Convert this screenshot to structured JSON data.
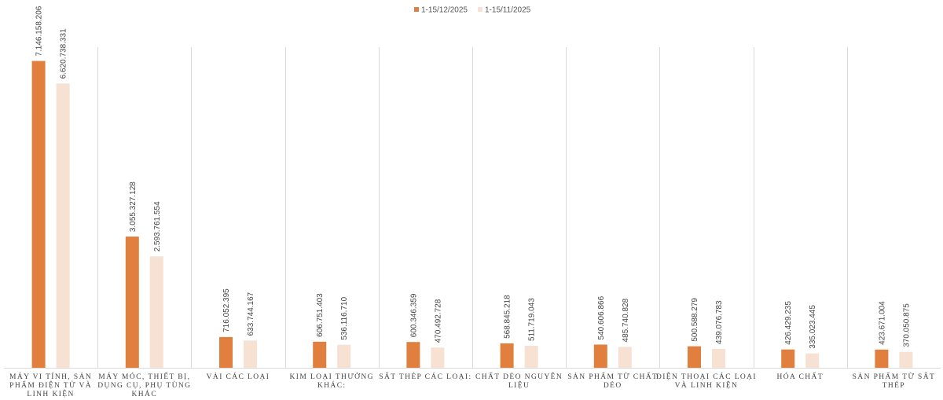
{
  "chart_data": {
    "type": "bar",
    "title": "",
    "xlabel": "",
    "ylabel": "",
    "ylim": [
      0,
      8200000000
    ],
    "grid": false,
    "legend_position": "top-center",
    "categories": [
      [
        "MÁY VI TÍNH, SẢN",
        "PHẨM ĐIỆN TỬ VÀ",
        "LINH KIỆN"
      ],
      [
        "MÁY MÓC, THIẾT BỊ,",
        "DỤNG CỤ, PHỤ TÙNG",
        "KHÁC"
      ],
      [
        "VẢI CÁC LOẠI"
      ],
      [
        "KIM LOẠI THƯỜNG",
        "KHÁC:"
      ],
      [
        "SẮT THÉP CÁC LOẠI:"
      ],
      [
        "CHẤT DẺO NGUYÊN",
        "LIỆU"
      ],
      [
        "SẢN PHẨM TỪ CHẤT",
        "DẺO"
      ],
      [
        "ĐIỆN THOẠI CÁC LOẠI",
        "VÀ LINH KIỆN"
      ],
      [
        "HÓA CHẤT"
      ],
      [
        "SẢN PHẨM TỪ SẮT",
        "THÉP"
      ]
    ],
    "series": [
      {
        "name": "1-15/12/2025",
        "color": "#E07F3E",
        "values": [
          7146158206,
          3055327128,
          716052395,
          606751403,
          600346359,
          568845218,
          540606866,
          500588279,
          426429235,
          423671004
        ],
        "labels": [
          "7.146.158.206",
          "3.055.327.128",
          "716.052.395",
          "606.751.403",
          "600.346.359",
          "568.845.218",
          "540.606.866",
          "500.588.279",
          "426.429.235",
          "423.671.004"
        ]
      },
      {
        "name": "1-15/11/2025",
        "color": "#F6E1D3",
        "values": [
          6620738331,
          2593761554,
          633744167,
          536116710,
          470492728,
          511719043,
          485740828,
          439076783,
          335023445,
          370050875
        ],
        "labels": [
          "6.620.738.331",
          "2.593.761.554",
          "633.744.167",
          "536.116.710",
          "470.492.728",
          "511.719.043",
          "485.740.828",
          "439.076.783",
          "335.023.445",
          "370.050.875"
        ]
      }
    ]
  }
}
